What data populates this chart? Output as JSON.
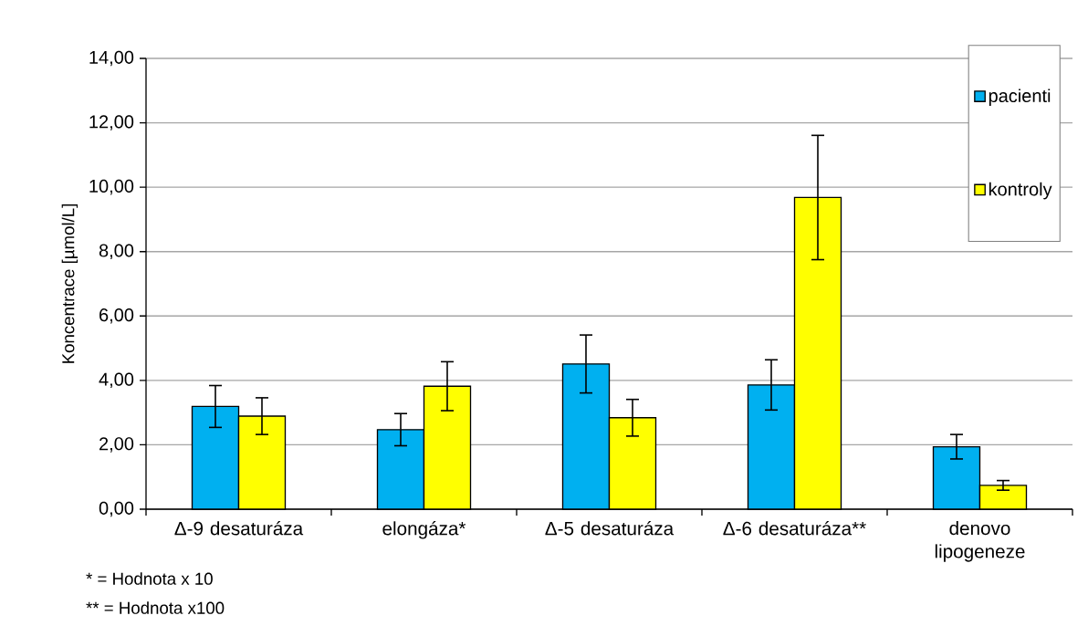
{
  "chart_data": {
    "type": "bar",
    "ylabel": "Koncentrace [µmol/L]",
    "categories": [
      "Δ-9 desaturáza",
      "elongáza*",
      "Δ-5 desaturáza",
      "Δ-6 desaturáza**",
      "denovo lipogeneze"
    ],
    "series": [
      {
        "name": "pacienti",
        "color": "#00b0f0",
        "values": [
          3.19,
          2.47,
          4.51,
          3.86,
          1.94
        ],
        "errors": [
          0.65,
          0.5,
          0.9,
          0.78,
          0.38
        ]
      },
      {
        "name": "kontroly",
        "color": "#ffff00",
        "values": [
          2.89,
          3.82,
          2.84,
          9.68,
          0.74
        ],
        "errors": [
          0.57,
          0.76,
          0.57,
          1.93,
          0.15
        ]
      }
    ],
    "ylim": [
      0,
      14
    ],
    "yticks": [
      {
        "value": 0,
        "label": "0,00"
      },
      {
        "value": 2,
        "label": "2,00"
      },
      {
        "value": 4,
        "label": "4,00"
      },
      {
        "value": 6,
        "label": "6,00"
      },
      {
        "value": 8,
        "label": "8,00"
      },
      {
        "value": 10,
        "label": "10,00"
      },
      {
        "value": 12,
        "label": "12,00"
      },
      {
        "value": 14,
        "label": "14,00"
      }
    ],
    "grid": "y",
    "legend": "top right",
    "annotations": [
      "* = Hodnota x 10",
      "** = Hodnota x100"
    ]
  }
}
